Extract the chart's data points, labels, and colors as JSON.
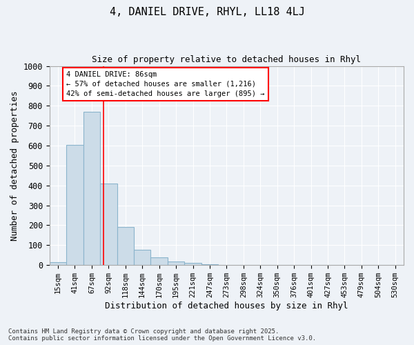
{
  "title": "4, DANIEL DRIVE, RHYL, LL18 4LJ",
  "subtitle": "Size of property relative to detached houses in Rhyl",
  "xlabel": "Distribution of detached houses by size in Rhyl",
  "ylabel": "Number of detached properties",
  "categories": [
    "15sqm",
    "41sqm",
    "67sqm",
    "92sqm",
    "118sqm",
    "144sqm",
    "170sqm",
    "195sqm",
    "221sqm",
    "247sqm",
    "273sqm",
    "298sqm",
    "324sqm",
    "350sqm",
    "376sqm",
    "401sqm",
    "427sqm",
    "453sqm",
    "479sqm",
    "504sqm",
    "530sqm"
  ],
  "values": [
    15,
    605,
    770,
    410,
    192,
    78,
    38,
    18,
    10,
    5,
    2,
    0,
    0,
    0,
    0,
    0,
    0,
    0,
    0,
    0,
    0
  ],
  "bar_color": "#ccdce8",
  "bar_edgecolor": "#8ab4cc",
  "redline_x": 2.72,
  "redline_label": "4 DANIEL DRIVE: 86sqm",
  "annotation_line1": "← 57% of detached houses are smaller (1,216)",
  "annotation_line2": "42% of semi-detached houses are larger (895) →",
  "ylim": [
    0,
    1000
  ],
  "yticks": [
    0,
    100,
    200,
    300,
    400,
    500,
    600,
    700,
    800,
    900,
    1000
  ],
  "background_color": "#eef2f7",
  "grid_color": "#ffffff",
  "footer_line1": "Contains HM Land Registry data © Crown copyright and database right 2025.",
  "footer_line2": "Contains public sector information licensed under the Open Government Licence v3.0."
}
